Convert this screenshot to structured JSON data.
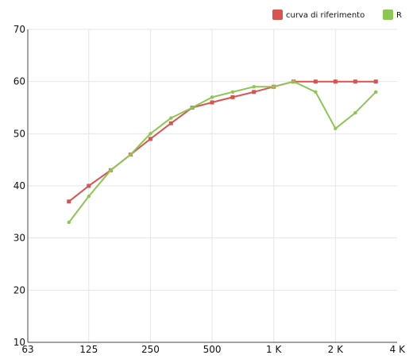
{
  "chart_data": {
    "type": "line",
    "x_scale": "log2",
    "xlim": [
      63,
      4000
    ],
    "ylim": [
      10,
      70
    ],
    "x_ticks": [
      63,
      125,
      250,
      500,
      1000,
      2000,
      4000
    ],
    "x_tick_labels": [
      "63",
      "125",
      "250",
      "500",
      "1 K",
      "2 K",
      "4 K"
    ],
    "y_ticks": [
      10,
      20,
      30,
      40,
      50,
      60,
      70
    ],
    "y_tick_labels": [
      "10",
      "20",
      "30",
      "40",
      "50",
      "60",
      "70"
    ],
    "grid": true,
    "legend_position": "top-right",
    "x": [
      100,
      125,
      160,
      200,
      250,
      315,
      400,
      500,
      630,
      800,
      1000,
      1250,
      1600,
      2000,
      2500,
      3150
    ],
    "series": [
      {
        "name": "curva di riferimento",
        "color": "#d9534f",
        "values": [
          37,
          40,
          43,
          46,
          49,
          52,
          55,
          56,
          57,
          58,
          59,
          60,
          60,
          60,
          60,
          60
        ]
      },
      {
        "name": "R",
        "color": "#8dc653",
        "values": [
          33,
          38,
          43,
          46,
          50,
          53,
          55,
          57,
          58,
          59,
          59,
          60,
          58,
          51,
          54,
          58
        ]
      }
    ]
  }
}
